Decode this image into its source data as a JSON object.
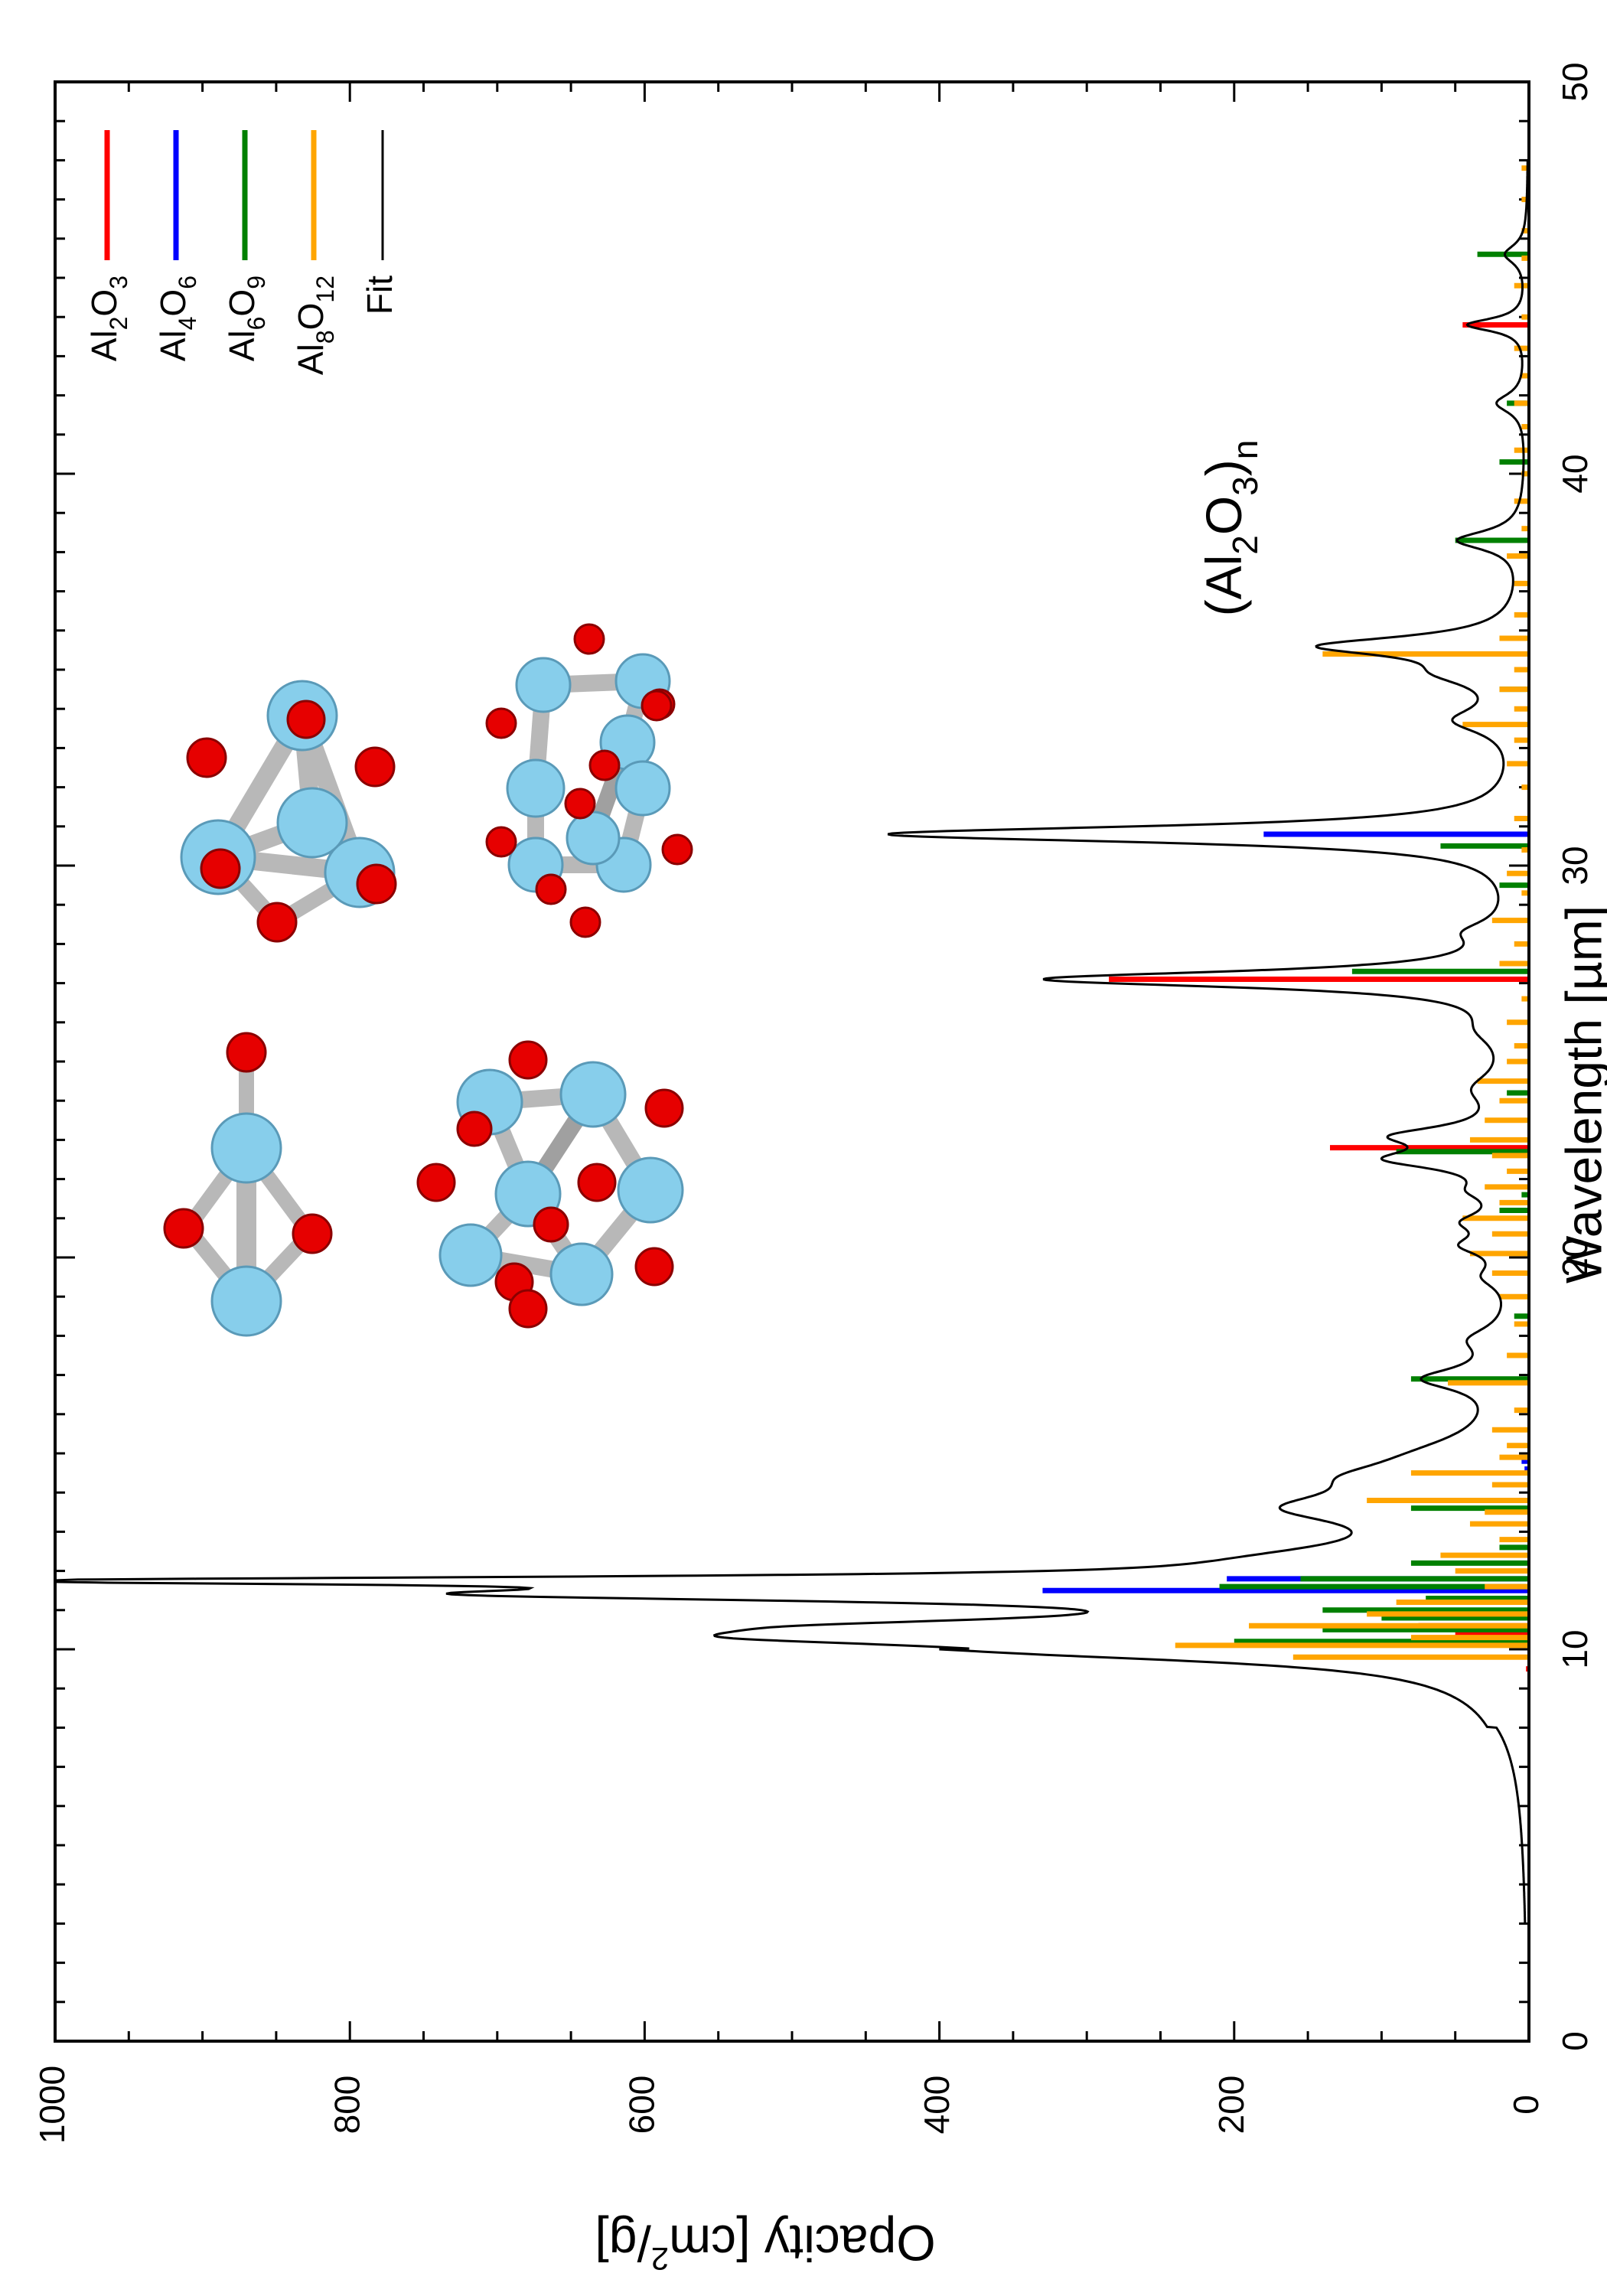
{
  "chart_data": {
    "type": "line",
    "orientation": "rotated-90-clockwise",
    "xlabel": "Wavelength [µm]",
    "ylabel_parts": [
      "Opacity [cm",
      "2",
      "/g]"
    ],
    "xlim": [
      0,
      50
    ],
    "ylim": [
      0,
      1000
    ],
    "x_ticks": [
      "0",
      "10",
      "20",
      "30",
      "40",
      "50"
    ],
    "y_ticks": [
      "0",
      "200",
      "400",
      "600",
      "800",
      "1000"
    ],
    "x_tick_values": [
      0,
      10,
      20,
      30,
      40,
      50
    ],
    "y_tick_values": [
      0,
      200,
      400,
      600,
      800,
      1000
    ],
    "x_minor_step": 1,
    "y_minor_step": 50,
    "grid": false,
    "legend_placement": "top-right",
    "annotation": {
      "parts": [
        {
          "t": "(Al",
          "sub": false
        },
        {
          "t": "2",
          "sub": true
        },
        {
          "t": "O",
          "sub": false
        },
        {
          "t": "3",
          "sub": true
        },
        {
          "t": ")",
          "sub": false
        },
        {
          "t": "n",
          "sub": true
        }
      ]
    },
    "series": [
      {
        "name": "Al2O3",
        "legend_parts": [
          {
            "t": "Al",
            "sub": false
          },
          {
            "t": "2",
            "sub": true
          },
          {
            "t": "O",
            "sub": false
          },
          {
            "t": "3",
            "sub": true
          }
        ],
        "color": "#ff0000",
        "style": "sticks",
        "x": [
          9.5,
          10.4,
          10.6,
          22.8,
          27.1,
          43.8
        ],
        "values": [
          2,
          50,
          75,
          135,
          285,
          45
        ]
      },
      {
        "name": "Al4O6",
        "legend_parts": [
          {
            "t": "Al",
            "sub": false
          },
          {
            "t": "4",
            "sub": true
          },
          {
            "t": "O",
            "sub": false
          },
          {
            "t": "6",
            "sub": true
          }
        ],
        "color": "#0000ff",
        "style": "sticks",
        "x": [
          11.5,
          11.8,
          14.6,
          14.8,
          30.8
        ],
        "values": [
          330,
          205,
          3,
          5,
          180
        ]
      },
      {
        "name": "Al6O9",
        "legend_parts": [
          {
            "t": "Al",
            "sub": false
          },
          {
            "t": "6",
            "sub": true
          },
          {
            "t": "O",
            "sub": false
          },
          {
            "t": "9",
            "sub": true
          }
        ],
        "color": "#008000",
        "style": "sticks",
        "x": [
          10.2,
          10.5,
          10.8,
          11.0,
          11.3,
          11.6,
          11.8,
          12.2,
          12.6,
          13.6,
          16.9,
          18.5,
          21.2,
          21.6,
          22.7,
          24.2,
          27.3,
          29.5,
          30.5,
          34.5,
          38.3,
          40.3,
          41.8,
          45.6
        ],
        "values": [
          200,
          140,
          100,
          140,
          70,
          210,
          155,
          80,
          20,
          80,
          80,
          10,
          20,
          5,
          90,
          15,
          120,
          20,
          60,
          20,
          50,
          20,
          15,
          35
        ]
      },
      {
        "name": "Al8O12",
        "legend_parts": [
          {
            "t": "Al",
            "sub": false
          },
          {
            "t": "8",
            "sub": true
          },
          {
            "t": "O",
            "sub": false
          },
          {
            "t": "12",
            "sub": true
          }
        ],
        "color": "#ffa500",
        "style": "sticks",
        "x": [
          9.8,
          10.1,
          10.3,
          10.6,
          10.9,
          11.2,
          11.6,
          12.0,
          12.4,
          12.8,
          13.2,
          13.5,
          13.8,
          14.2,
          14.5,
          14.9,
          15.2,
          15.6,
          16.1,
          16.8,
          17.5,
          18.3,
          19.0,
          19.6,
          20.1,
          20.6,
          21.0,
          21.4,
          21.8,
          22.2,
          22.6,
          23.0,
          23.5,
          24.0,
          24.5,
          25.0,
          25.4,
          26.0,
          26.6,
          27.5,
          28.0,
          28.6,
          29.3,
          29.8,
          30.4,
          31.2,
          32.0,
          32.6,
          33.2,
          33.6,
          34.0,
          34.5,
          35.0,
          35.4,
          35.8,
          36.4,
          37.2,
          37.9,
          38.6,
          39.3,
          40.0,
          40.6,
          41.2,
          41.8,
          42.5,
          43.2,
          44.0,
          44.8,
          45.5,
          46.2,
          47.0,
          47.8
        ],
        "values": [
          160,
          240,
          80,
          190,
          110,
          90,
          30,
          50,
          60,
          20,
          40,
          30,
          110,
          25,
          80,
          20,
          15,
          25,
          10,
          55,
          15,
          10,
          20,
          25,
          40,
          25,
          45,
          20,
          30,
          15,
          25,
          40,
          30,
          20,
          35,
          15,
          10,
          15,
          5,
          20,
          10,
          25,
          5,
          15,
          5,
          10,
          5,
          15,
          10,
          45,
          10,
          20,
          10,
          140,
          20,
          10,
          10,
          15,
          5,
          10,
          5,
          10,
          5,
          10,
          5,
          10,
          5,
          10,
          5,
          5,
          5,
          5
        ]
      },
      {
        "name": "Fit",
        "legend_parts": [
          {
            "t": "Fit",
            "sub": false
          }
        ],
        "color": "#000000",
        "style": "line",
        "peaks": [
          [
            9.9,
            140,
            0.3
          ],
          [
            10.3,
            360,
            0.3
          ],
          [
            10.6,
            230,
            0.25
          ],
          [
            11.4,
            560,
            0.22
          ],
          [
            11.75,
            800,
            0.12
          ],
          [
            12.3,
            100,
            0.5
          ],
          [
            13.6,
            115,
            0.5
          ],
          [
            14.4,
            65,
            0.5
          ],
          [
            15.0,
            30,
            0.6
          ],
          [
            16.9,
            55,
            0.35
          ],
          [
            17.9,
            25,
            0.4
          ],
          [
            19.5,
            18,
            0.35
          ],
          [
            20.3,
            30,
            0.3
          ],
          [
            20.9,
            28,
            0.3
          ],
          [
            21.7,
            20,
            0.3
          ],
          [
            22.5,
            75,
            0.3
          ],
          [
            23.1,
            70,
            0.3
          ],
          [
            24.3,
            25,
            0.5
          ],
          [
            25.8,
            18,
            0.5
          ],
          [
            27.1,
            320,
            0.25
          ],
          [
            28.3,
            25,
            0.35
          ],
          [
            30.8,
            430,
            0.25
          ],
          [
            33.7,
            40,
            0.4
          ],
          [
            34.9,
            40,
            0.4
          ],
          [
            35.6,
            130,
            0.3
          ],
          [
            38.3,
            45,
            0.3
          ],
          [
            41.8,
            20,
            0.3
          ],
          [
            43.8,
            40,
            0.2
          ],
          [
            45.6,
            15,
            0.3
          ]
        ],
        "baseline": 6
      }
    ]
  }
}
